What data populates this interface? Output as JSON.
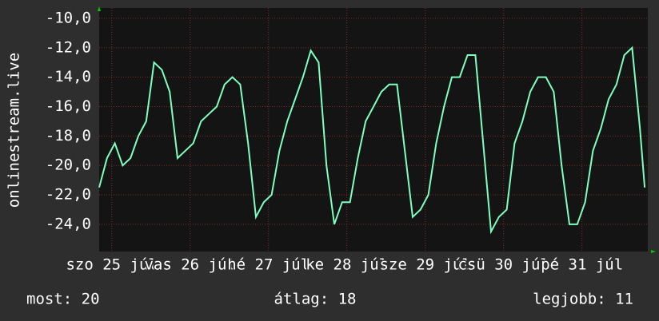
{
  "chart_data": {
    "type": "line",
    "ylabel": "onlinestream.live",
    "xlim": [
      0,
      7
    ],
    "xticks": [
      {
        "value": 0.16,
        "label": "szo 25 júl"
      },
      {
        "value": 1.16,
        "label": "vas 26 júl"
      },
      {
        "value": 2.16,
        "label": "hé 27 júl"
      },
      {
        "value": 3.16,
        "label": "ke 28 júl"
      },
      {
        "value": 4.16,
        "label": "sze 29 júl"
      },
      {
        "value": 5.16,
        "label": "csü 30 júl"
      },
      {
        "value": 6.16,
        "label": "pé 31 júl"
      }
    ],
    "ylim": [
      -25.85,
      -9.3
    ],
    "yticks": [
      {
        "value": -10,
        "label": "-10,0"
      },
      {
        "value": -12,
        "label": "-12,0"
      },
      {
        "value": -14,
        "label": "-14,0"
      },
      {
        "value": -16,
        "label": "-16,0"
      },
      {
        "value": -18,
        "label": "-18,0"
      },
      {
        "value": -20,
        "label": "-20,0"
      },
      {
        "value": -22,
        "label": "-22,0"
      },
      {
        "value": -24,
        "label": "-24,0"
      }
    ],
    "grid": true,
    "x": [
      0,
      0.1,
      0.2,
      0.3,
      0.4,
      0.5,
      0.6,
      0.7,
      0.8,
      0.9,
      1.0,
      1.1,
      1.2,
      1.3,
      1.4,
      1.5,
      1.6,
      1.7,
      1.8,
      1.9,
      2.0,
      2.1,
      2.2,
      2.3,
      2.4,
      2.5,
      2.6,
      2.7,
      2.8,
      2.9,
      3.0,
      3.1,
      3.2,
      3.3,
      3.4,
      3.5,
      3.6,
      3.7,
      3.8,
      3.9,
      4.0,
      4.1,
      4.2,
      4.3,
      4.4,
      4.5,
      4.6,
      4.7,
      4.8,
      4.9,
      5.0,
      5.1,
      5.2,
      5.3,
      5.4,
      5.5,
      5.6,
      5.7,
      5.8,
      5.9,
      6.0,
      6.1,
      6.2,
      6.3,
      6.4,
      6.5,
      6.6,
      6.7,
      6.8,
      6.9,
      6.96
    ],
    "series": [
      {
        "color": "#7fffbf",
        "values": [
          -21.5,
          -19.5,
          -18.5,
          -20,
          -19.5,
          -18,
          -17,
          -13,
          -13.5,
          -15,
          -19.5,
          -19,
          -18.5,
          -17,
          -16.5,
          -16,
          -14.5,
          -14,
          -14.5,
          -18.5,
          -23.5,
          -22.5,
          -22,
          -19,
          -17,
          -15.5,
          -14,
          -12.2,
          -13,
          -20,
          -24,
          -22.5,
          -22.5,
          -19.5,
          -17,
          -16,
          -15,
          -14.5,
          -14.5,
          -19,
          -23.5,
          -23,
          -22,
          -18.5,
          -16,
          -14,
          -14,
          -12.5,
          -12.5,
          -18.5,
          -24.5,
          -23.5,
          -23,
          -18.5,
          -17,
          -15,
          -14,
          -14,
          -15,
          -20,
          -24,
          -24,
          -22.5,
          -19,
          -17.5,
          -15.5,
          -14.5,
          -12.5,
          -12,
          -17.5,
          -21.5
        ]
      }
    ],
    "stats": [
      "most: 20",
      "átlag: 18",
      "legjobb: 11"
    ]
  }
}
